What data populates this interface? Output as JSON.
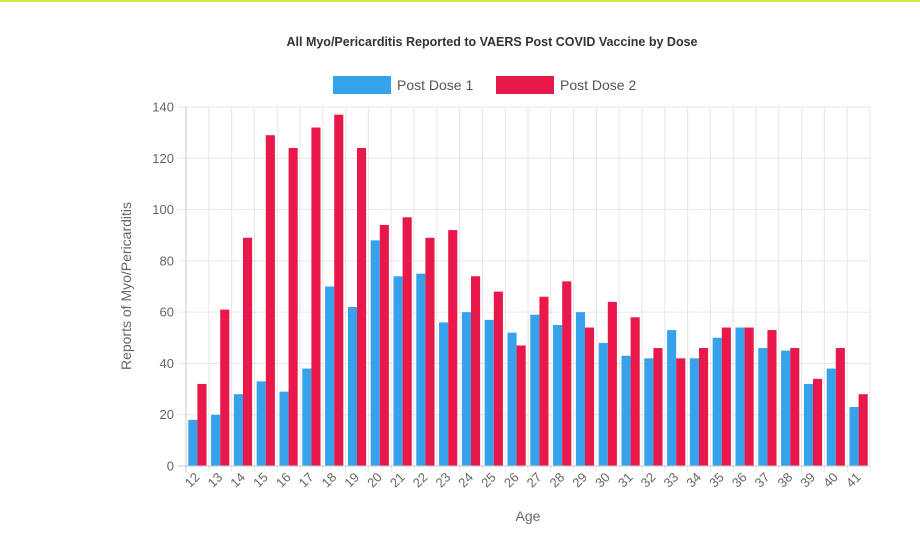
{
  "chart_data": {
    "type": "bar",
    "title": "All Myo/Pericarditis Reported to VAERS Post COVID Vaccine by Dose",
    "xlabel": "Age",
    "ylabel": "Reports of Myo/Pericarditis",
    "ylim": [
      0,
      140
    ],
    "yticks": [
      0,
      20,
      40,
      60,
      80,
      100,
      120,
      140
    ],
    "grid": true,
    "legend_position": "top-center",
    "categories": [
      "12",
      "13",
      "14",
      "15",
      "16",
      "17",
      "18",
      "19",
      "20",
      "21",
      "22",
      "23",
      "24",
      "25",
      "26",
      "27",
      "28",
      "29",
      "30",
      "31",
      "32",
      "33",
      "34",
      "35",
      "36",
      "37",
      "38",
      "39",
      "40",
      "41"
    ],
    "series": [
      {
        "name": "Post Dose 1",
        "color": "#36a2eb",
        "values": [
          18,
          20,
          28,
          33,
          29,
          38,
          70,
          62,
          88,
          74,
          75,
          56,
          60,
          57,
          52,
          59,
          55,
          60,
          48,
          43,
          42,
          53,
          42,
          50,
          54,
          46,
          45,
          32,
          38,
          23
        ]
      },
      {
        "name": "Post Dose 2",
        "color": "#e8194a",
        "values": [
          32,
          61,
          89,
          129,
          124,
          132,
          137,
          124,
          94,
          97,
          89,
          92,
          74,
          68,
          47,
          66,
          72,
          54,
          64,
          58,
          46,
          42,
          46,
          54,
          54,
          53,
          46,
          34,
          46,
          28
        ]
      }
    ]
  }
}
